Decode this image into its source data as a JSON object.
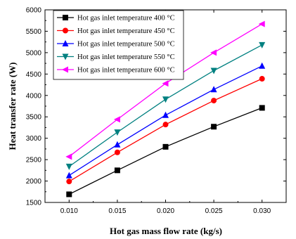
{
  "chart_data": {
    "type": "line",
    "x": [
      0.01,
      0.015,
      0.02,
      0.025,
      0.03
    ],
    "x_tick_labels": [
      "0.010",
      "0.015",
      "0.020",
      "0.025",
      "0.030"
    ],
    "xlim": [
      0.0075,
      0.0325
    ],
    "ylim": [
      1500,
      6000
    ],
    "y_ticks": [
      1500,
      2000,
      2500,
      3000,
      3500,
      4000,
      4500,
      5000,
      5500,
      6000
    ],
    "xlabel": "Hot gas mass flow rate (kg/s)",
    "ylabel": "Heat transfer rate (W)",
    "grid": false,
    "legend_position": "top-left",
    "series": [
      {
        "name": "Hot gas inlet temperature 400 °C",
        "color": "#000000",
        "marker": "square",
        "values": [
          1690,
          2250,
          2800,
          3270,
          3710
        ]
      },
      {
        "name": "Hot gas inlet temperature 450 °C",
        "color": "#ff0000",
        "marker": "circle",
        "values": [
          1990,
          2670,
          3320,
          3880,
          4390
        ]
      },
      {
        "name": "Hot gas inlet temperature 500 °C",
        "color": "#0000ff",
        "marker": "triangle-up",
        "values": [
          2130,
          2850,
          3540,
          4140,
          4690
        ]
      },
      {
        "name": "Hot gas inlet temperature 550 °C",
        "color": "#008080",
        "marker": "triangle-down",
        "values": [
          2340,
          3140,
          3910,
          4580,
          5180
        ]
      },
      {
        "name": "Hot gas inlet temperature 600 °C",
        "color": "#ff00ff",
        "marker": "triangle-left",
        "values": [
          2570,
          3440,
          4280,
          5000,
          5670
        ]
      }
    ]
  }
}
